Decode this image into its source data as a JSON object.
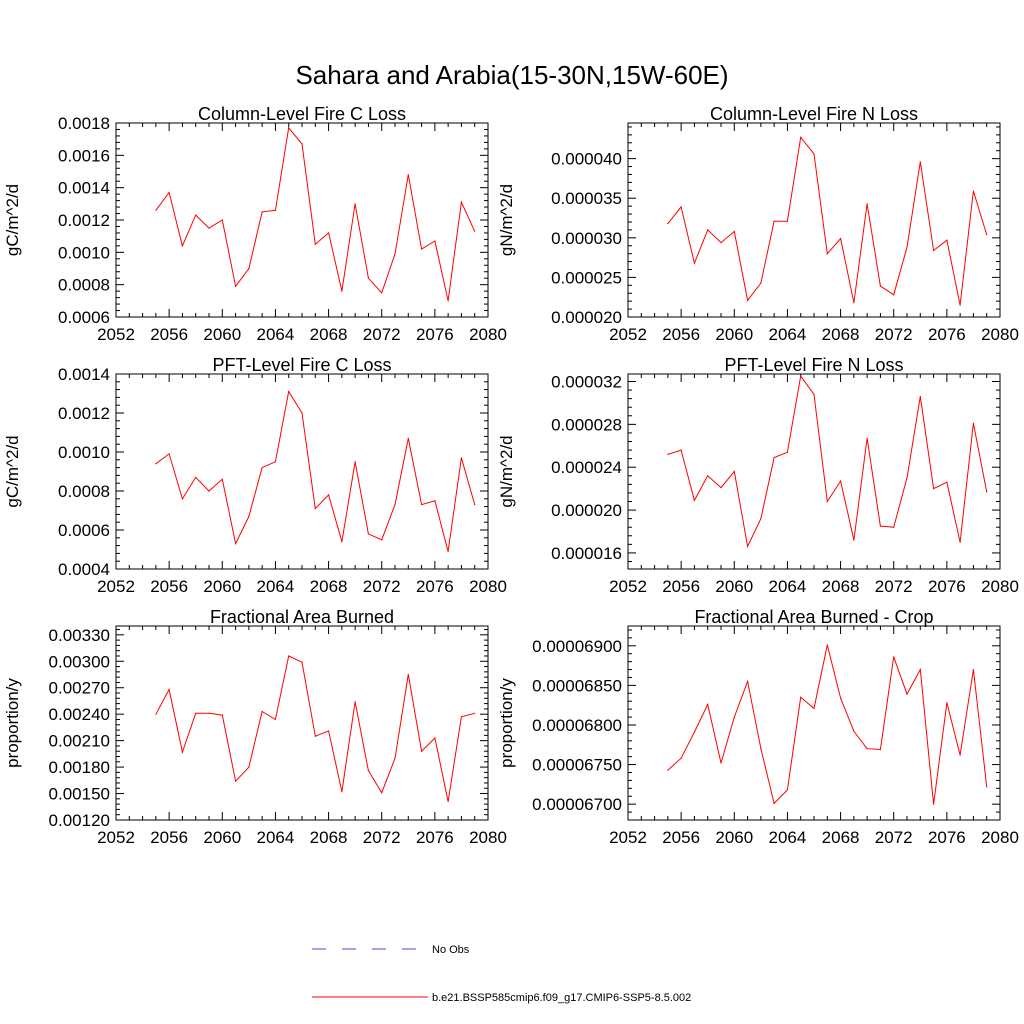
{
  "figure": {
    "title": "Sahara and Arabia(15-30N,15W-60E)"
  },
  "legend": {
    "items": [
      {
        "label": "No Obs",
        "color": "#4a4ad0",
        "dash": true
      },
      {
        "label": "b.e21.BSSP585cmip6.f09_g17.CMIP6-SSP5-8.5.002",
        "color": "#ff0000",
        "dash": false
      }
    ]
  },
  "chart_data": [
    {
      "type": "line",
      "title": "Column-Level Fire C Loss",
      "ylabel": "gC/m^2/d",
      "xlim": [
        2052,
        2080
      ],
      "xticks": [
        "2052",
        "2056",
        "2060",
        "2064",
        "2068",
        "2072",
        "2076",
        "2080"
      ],
      "ylim": [
        0.0006,
        0.0018
      ],
      "yticks": [
        "0.0006",
        "0.0008",
        "0.0010",
        "0.0012",
        "0.0014",
        "0.0016",
        "0.0018"
      ],
      "series_color": "#ff0000",
      "x": [
        2055,
        2056,
        2057,
        2058,
        2059,
        2060,
        2061,
        2062,
        2063,
        2064,
        2065,
        2066,
        2067,
        2068,
        2069,
        2070,
        2071,
        2072,
        2073,
        2074,
        2075,
        2076,
        2077,
        2078,
        2079
      ],
      "y": [
        0.00126,
        0.00137,
        0.00104,
        0.00123,
        0.00115,
        0.0012,
        0.00079,
        0.0009,
        0.00125,
        0.00126,
        0.00177,
        0.00167,
        0.00105,
        0.00112,
        0.00076,
        0.0013,
        0.00084,
        0.00075,
        0.00099,
        0.00148,
        0.00102,
        0.00107,
        0.0007,
        0.00131,
        0.00113
      ]
    },
    {
      "type": "line",
      "title": "Column-Level Fire N Loss",
      "ylabel": "gN/m^2/d",
      "xlim": [
        2052,
        2080
      ],
      "xticks": [
        "2052",
        "2056",
        "2060",
        "2064",
        "2068",
        "2072",
        "2076",
        "2080"
      ],
      "ylim": [
        2e-05,
        4.45e-05
      ],
      "yticks": [
        "0.000020",
        "0.000025",
        "0.000030",
        "0.000035",
        "0.000040"
      ],
      "series_color": "#ff0000",
      "x": [
        2055,
        2056,
        2057,
        2058,
        2059,
        2060,
        2061,
        2062,
        2063,
        2064,
        2065,
        2066,
        2067,
        2068,
        2069,
        2070,
        2071,
        2072,
        2073,
        2074,
        2075,
        2076,
        2077,
        2078,
        2079
      ],
      "y": [
        3.18e-05,
        3.39e-05,
        2.68e-05,
        3.1e-05,
        2.94e-05,
        3.08e-05,
        2.21e-05,
        2.43e-05,
        3.21e-05,
        3.21e-05,
        4.27e-05,
        4.06e-05,
        2.8e-05,
        2.99e-05,
        2.18e-05,
        3.43e-05,
        2.39e-05,
        2.28e-05,
        2.88e-05,
        3.96e-05,
        2.84e-05,
        2.97e-05,
        2.15e-05,
        3.59e-05,
        3.04e-05
      ]
    },
    {
      "type": "line",
      "title": "PFT-Level Fire C Loss",
      "ylabel": "gC/m^2/d",
      "xlim": [
        2052,
        2080
      ],
      "xticks": [
        "2052",
        "2056",
        "2060",
        "2064",
        "2068",
        "2072",
        "2076",
        "2080"
      ],
      "ylim": [
        0.0004,
        0.0014
      ],
      "yticks": [
        "0.0004",
        "0.0006",
        "0.0008",
        "0.0010",
        "0.0012",
        "0.0014"
      ],
      "series_color": "#ff0000",
      "x": [
        2055,
        2056,
        2057,
        2058,
        2059,
        2060,
        2061,
        2062,
        2063,
        2064,
        2065,
        2066,
        2067,
        2068,
        2069,
        2070,
        2071,
        2072,
        2073,
        2074,
        2075,
        2076,
        2077,
        2078,
        2079
      ],
      "y": [
        0.00094,
        0.00099,
        0.00076,
        0.00087,
        0.0008,
        0.00086,
        0.00053,
        0.00067,
        0.00092,
        0.00095,
        0.00131,
        0.0012,
        0.00071,
        0.00078,
        0.00054,
        0.00095,
        0.00058,
        0.00055,
        0.00073,
        0.00107,
        0.00073,
        0.00075,
        0.00049,
        0.00097,
        0.00073
      ]
    },
    {
      "type": "line",
      "title": "PFT-Level Fire N Loss",
      "ylabel": "gN/m^2/d",
      "xlim": [
        2052,
        2080
      ],
      "xticks": [
        "2052",
        "2056",
        "2060",
        "2064",
        "2068",
        "2072",
        "2076",
        "2080"
      ],
      "ylim": [
        1.45e-05,
        3.27e-05
      ],
      "yticks": [
        "0.000016",
        "0.000020",
        "0.000024",
        "0.000028",
        "0.000032"
      ],
      "series_color": "#ff0000",
      "x": [
        2055,
        2056,
        2057,
        2058,
        2059,
        2060,
        2061,
        2062,
        2063,
        2064,
        2065,
        2066,
        2067,
        2068,
        2069,
        2070,
        2071,
        2072,
        2073,
        2074,
        2075,
        2076,
        2077,
        2078,
        2079
      ],
      "y": [
        2.52e-05,
        2.56e-05,
        2.09e-05,
        2.32e-05,
        2.21e-05,
        2.36e-05,
        1.66e-05,
        1.92e-05,
        2.49e-05,
        2.54e-05,
        3.25e-05,
        3.08e-05,
        2.08e-05,
        2.27e-05,
        1.72e-05,
        2.67e-05,
        1.85e-05,
        1.84e-05,
        2.3e-05,
        3.06e-05,
        2.2e-05,
        2.26e-05,
        1.7e-05,
        2.81e-05,
        2.17e-05
      ]
    },
    {
      "type": "line",
      "title": "Fractional Area Burned",
      "ylabel": "proportion/y",
      "xlim": [
        2052,
        2080
      ],
      "xticks": [
        "2052",
        "2056",
        "2060",
        "2064",
        "2068",
        "2072",
        "2076",
        "2080"
      ],
      "ylim": [
        0.0012,
        0.0034
      ],
      "yticks": [
        "0.00120",
        "0.00150",
        "0.00180",
        "0.00210",
        "0.00240",
        "0.00270",
        "0.00300",
        "0.00330"
      ],
      "series_color": "#ff0000",
      "x": [
        2055,
        2056,
        2057,
        2058,
        2059,
        2060,
        2061,
        2062,
        2063,
        2064,
        2065,
        2066,
        2067,
        2068,
        2069,
        2070,
        2071,
        2072,
        2073,
        2074,
        2075,
        2076,
        2077,
        2078,
        2079
      ],
      "y": [
        0.0024,
        0.00268,
        0.00197,
        0.00241,
        0.00241,
        0.00239,
        0.00164,
        0.0018,
        0.00243,
        0.00234,
        0.00306,
        0.00299,
        0.00215,
        0.00221,
        0.00152,
        0.00254,
        0.00176,
        0.00151,
        0.0019,
        0.00285,
        0.00198,
        0.00213,
        0.00141,
        0.00237,
        0.00241
      ]
    },
    {
      "type": "line",
      "title": "Fractional Area Burned - Crop",
      "ylabel": "proportion/y",
      "xlim": [
        2052,
        2080
      ],
      "xticks": [
        "2052",
        "2056",
        "2060",
        "2064",
        "2068",
        "2072",
        "2076",
        "2080"
      ],
      "ylim": [
        6.68e-05,
        6.925e-05
      ],
      "yticks": [
        "0.00006700",
        "0.00006750",
        "0.00006800",
        "0.00006850",
        "0.00006900"
      ],
      "series_color": "#ff0000",
      "x": [
        2055,
        2056,
        2057,
        2058,
        2059,
        2060,
        2061,
        2062,
        2063,
        2064,
        2065,
        2066,
        2067,
        2068,
        2069,
        2070,
        2071,
        2072,
        2073,
        2074,
        2075,
        2076,
        2077,
        2078,
        2079
      ],
      "y": [
        6.743e-05,
        6.758e-05,
        6.791e-05,
        6.826e-05,
        6.752e-05,
        6.81e-05,
        6.855e-05,
        6.77e-05,
        6.701e-05,
        6.718e-05,
        6.835e-05,
        6.821e-05,
        6.901e-05,
        6.834e-05,
        6.792e-05,
        6.77e-05,
        6.769e-05,
        6.886e-05,
        6.839e-05,
        6.87e-05,
        6.7e-05,
        6.828e-05,
        6.762e-05,
        6.87e-05,
        6.722e-05
      ]
    }
  ]
}
